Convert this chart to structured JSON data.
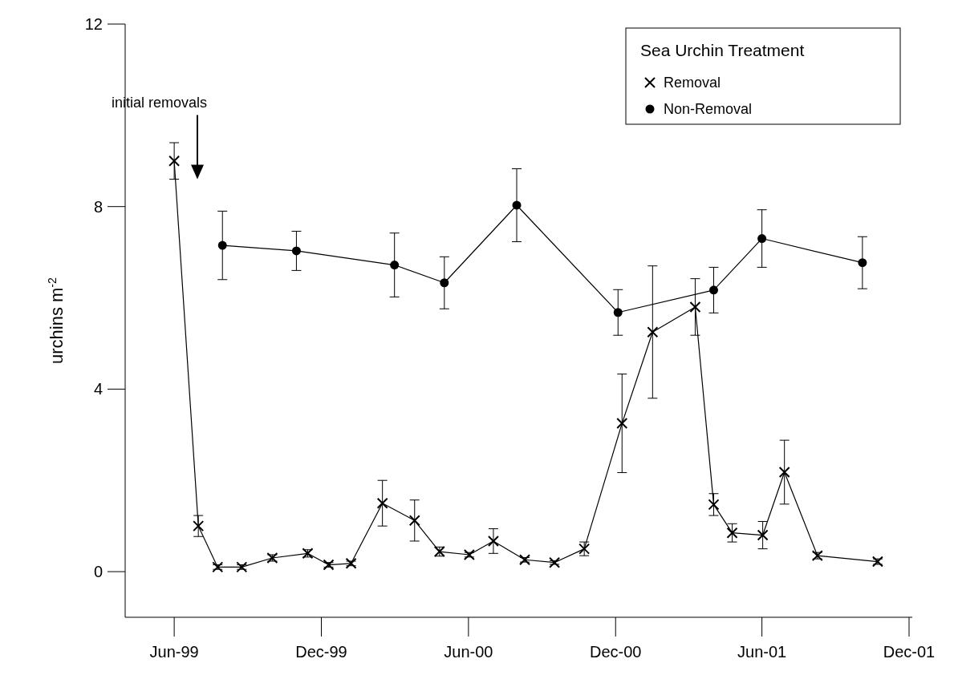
{
  "chart_data": {
    "type": "line",
    "ylabel": "urchins m$^{-2}$",
    "legend_title": "Sea Urchin Treatment",
    "legend": "top right",
    "grid": false,
    "xlim": [
      "1999-04-01",
      "2001-12-05"
    ],
    "xticks": [
      {
        "value": "1999-06-01",
        "label": "Jun-99"
      },
      {
        "value": "1999-12-01",
        "label": "Dec-99"
      },
      {
        "value": "2000-06-01",
        "label": "Jun-00"
      },
      {
        "value": "2000-12-01",
        "label": "Dec-00"
      },
      {
        "value": "2001-06-01",
        "label": "Jun-01"
      },
      {
        "value": "2001-12-01",
        "label": "Dec-01"
      }
    ],
    "ylim": [
      -1,
      12
    ],
    "yticks": [
      0,
      4,
      8,
      12
    ],
    "annotations": [
      "initial removals"
    ],
    "series": [
      {
        "name": "Removal",
        "color": "#000000",
        "marker": "cross",
        "x": [
          "1999-06-01",
          "1999-07-01",
          "1999-07-25",
          "1999-08-24",
          "1999-10-01",
          "1999-11-14",
          "1999-12-10",
          "2000-01-07",
          "2000-02-15",
          "2000-03-26",
          "2000-04-26",
          "2000-06-02",
          "2000-07-02",
          "2000-08-10",
          "2000-09-16",
          "2000-10-23",
          "2000-12-09",
          "2001-01-16",
          "2001-03-10",
          "2001-04-02",
          "2001-04-25",
          "2001-06-02",
          "2001-06-29",
          "2001-08-09",
          "2001-10-23"
        ],
        "values": [
          9.0,
          1.0,
          0.1,
          0.1,
          0.3,
          0.4,
          0.15,
          0.18,
          1.5,
          1.12,
          0.44,
          0.37,
          0.67,
          0.26,
          0.2,
          0.5,
          3.25,
          5.25,
          5.8,
          1.47,
          0.85,
          0.8,
          2.18,
          0.35,
          0.22
        ],
        "errors": [
          0.4,
          0.23,
          0.05,
          0.05,
          0.07,
          0.08,
          0.05,
          0.05,
          0.5,
          0.45,
          0.1,
          0.05,
          0.27,
          0.05,
          0.04,
          0.15,
          1.08,
          1.45,
          0.62,
          0.24,
          0.2,
          0.3,
          0.7,
          0.07,
          0.06
        ]
      },
      {
        "name": "Non-Removal",
        "color": "#000000",
        "marker": "circle",
        "x": [
          "1999-07-31",
          "1999-10-31",
          "2000-03-01",
          "2000-05-02",
          "2000-07-31",
          "2000-12-04",
          "2001-04-02",
          "2001-06-01",
          "2001-10-04"
        ],
        "values": [
          7.15,
          7.03,
          6.72,
          6.33,
          8.03,
          5.68,
          6.17,
          7.3,
          6.77
        ],
        "errors": [
          0.75,
          0.43,
          0.7,
          0.57,
          0.8,
          0.5,
          0.5,
          0.63,
          0.57
        ]
      }
    ]
  }
}
